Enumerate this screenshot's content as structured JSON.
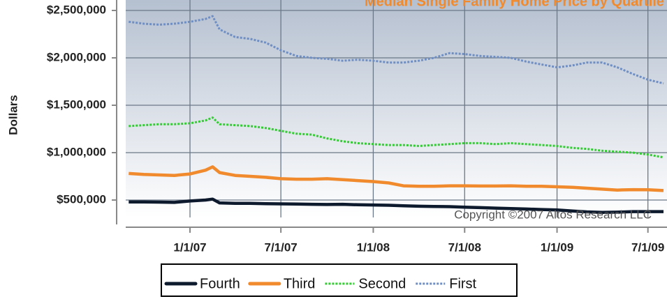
{
  "chart_data": {
    "type": "line",
    "title": "Median Single Family Home Price by Quartile",
    "y_label": "Dollars",
    "annotation": "Copyright ©2007 Altos Research LLC",
    "x": [
      "9/1/06",
      "10/1/06",
      "11/1/06",
      "12/1/06",
      "1/1/07",
      "2/1/07",
      "2/15/07",
      "3/1/07",
      "4/1/07",
      "5/1/07",
      "6/1/07",
      "7/1/07",
      "8/1/07",
      "9/1/07",
      "10/1/07",
      "11/1/07",
      "12/1/07",
      "1/1/08",
      "2/1/08",
      "3/1/08",
      "4/1/08",
      "5/1/08",
      "6/1/08",
      "7/1/08",
      "8/1/08",
      "9/1/08",
      "10/1/08",
      "11/1/08",
      "12/1/08",
      "1/1/09",
      "2/1/09",
      "3/1/09",
      "4/1/09",
      "5/1/09",
      "6/1/09",
      "7/1/09",
      "8/1/09"
    ],
    "xlim": [
      "8/26/06",
      "8/8/09"
    ],
    "xticks": [
      "1/1/07",
      "7/1/07",
      "1/1/08",
      "7/1/08",
      "1/1/09",
      "7/1/09"
    ],
    "ylim": [
      320000,
      2600000
    ],
    "yticks": [
      {
        "value": 500000,
        "label": "$500,000"
      },
      {
        "value": 1000000,
        "label": "$1,000,000"
      },
      {
        "value": 1500000,
        "label": "$1,500,000"
      },
      {
        "value": 2000000,
        "label": "$2,000,000"
      },
      {
        "value": 2500000,
        "label": "$2,500,000"
      }
    ],
    "grid": true,
    "legend": "bottom",
    "series": [
      {
        "name": "Fourth",
        "color": "#0d1a2e",
        "style": "solid",
        "values": [
          480000,
          480000,
          478000,
          475000,
          490000,
          500000,
          510000,
          470000,
          465000,
          465000,
          462000,
          460000,
          458000,
          455000,
          453000,
          455000,
          450000,
          448000,
          445000,
          440000,
          435000,
          432000,
          430000,
          425000,
          420000,
          415000,
          410000,
          405000,
          400000,
          395000,
          385000,
          375000,
          370000,
          372000,
          378000,
          378000,
          378000
        ]
      },
      {
        "name": "Third",
        "color": "#f08a2c",
        "style": "solid",
        "values": [
          780000,
          770000,
          765000,
          760000,
          775000,
          815000,
          850000,
          790000,
          760000,
          750000,
          740000,
          725000,
          720000,
          720000,
          725000,
          715000,
          705000,
          695000,
          680000,
          650000,
          645000,
          645000,
          650000,
          650000,
          648000,
          648000,
          650000,
          645000,
          645000,
          640000,
          635000,
          625000,
          615000,
          605000,
          610000,
          608000,
          600000
        ]
      },
      {
        "name": "Second",
        "color": "#33cc33",
        "style": "dotted",
        "values": [
          1280000,
          1290000,
          1300000,
          1300000,
          1310000,
          1340000,
          1370000,
          1300000,
          1290000,
          1280000,
          1260000,
          1230000,
          1200000,
          1190000,
          1150000,
          1120000,
          1100000,
          1090000,
          1080000,
          1080000,
          1070000,
          1080000,
          1090000,
          1100000,
          1100000,
          1090000,
          1100000,
          1090000,
          1080000,
          1070000,
          1050000,
          1040000,
          1020000,
          1010000,
          1000000,
          980000,
          950000
        ]
      },
      {
        "name": "First",
        "color": "#6f8fc4",
        "style": "dotted",
        "values": [
          2380000,
          2360000,
          2350000,
          2360000,
          2380000,
          2410000,
          2440000,
          2300000,
          2220000,
          2200000,
          2160000,
          2080000,
          2020000,
          2000000,
          1990000,
          1970000,
          1980000,
          1970000,
          1950000,
          1950000,
          1970000,
          2000000,
          2050000,
          2040000,
          2020000,
          2010000,
          2000000,
          1960000,
          1930000,
          1900000,
          1920000,
          1950000,
          1950000,
          1900000,
          1830000,
          1770000,
          1730000
        ]
      }
    ]
  }
}
